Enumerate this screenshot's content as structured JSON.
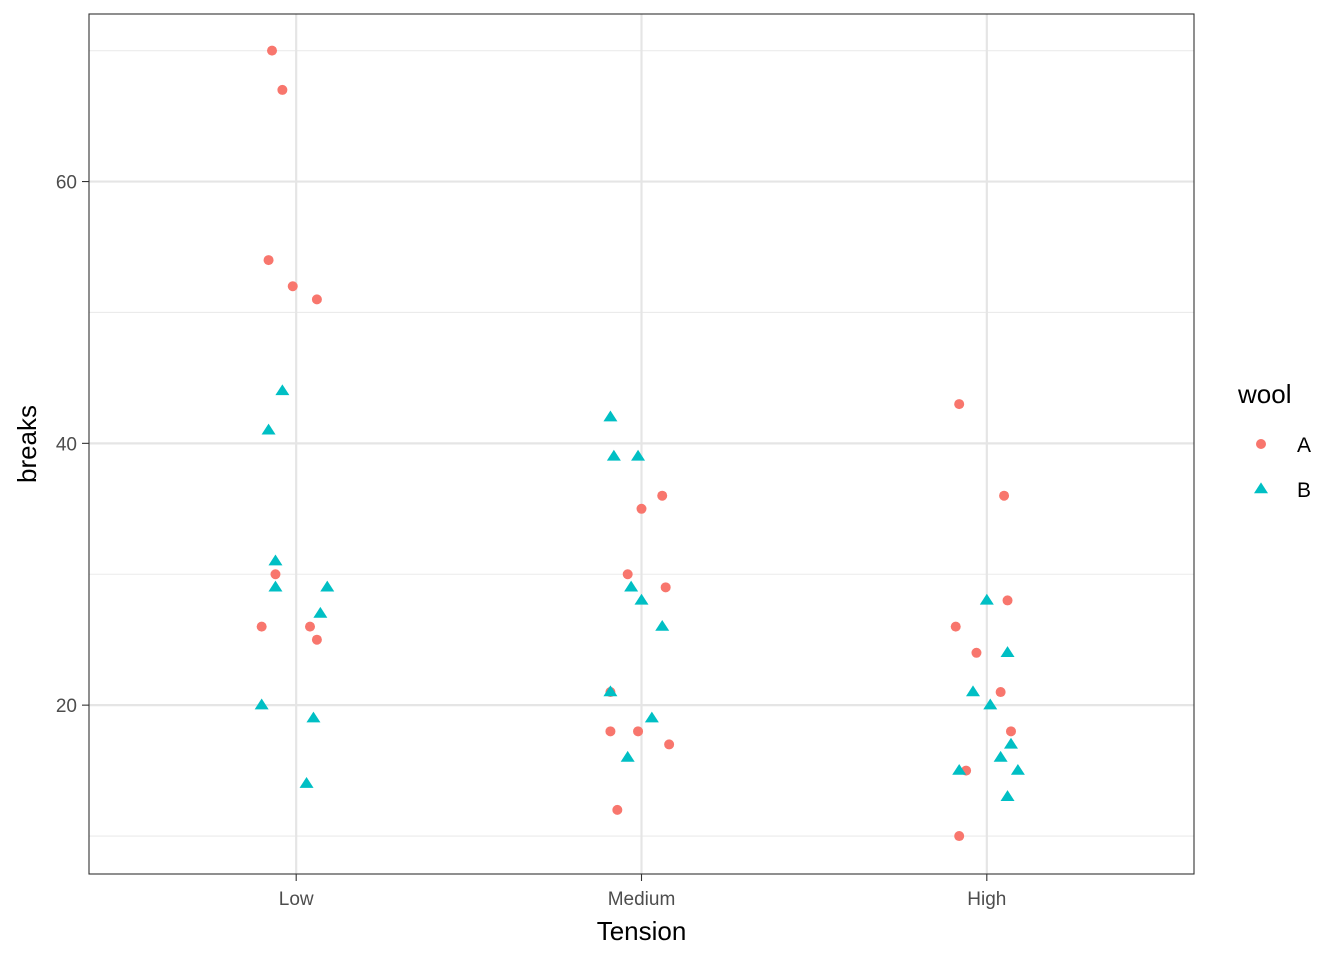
{
  "chart_data": {
    "type": "scatter",
    "title": "",
    "xlabel": "Tension",
    "ylabel": "breaks",
    "categories": [
      "Low",
      "Medium",
      "High"
    ],
    "ylim": [
      7.1,
      72.8
    ],
    "yticks": [
      20,
      40,
      60
    ],
    "ytick_labels": [
      "20",
      "40",
      "60"
    ],
    "grid": true,
    "legend": {
      "title": "wool",
      "position": "right",
      "entries": [
        {
          "name": "A",
          "shape": "circle",
          "color": "#F8766D"
        },
        {
          "name": "B",
          "shape": "triangle",
          "color": "#00BFC4"
        }
      ]
    },
    "series": [
      {
        "name": "A",
        "shape": "circle",
        "color": "#F8766D",
        "points": [
          {
            "x": 0.93,
            "y": 70
          },
          {
            "x": 0.96,
            "y": 67
          },
          {
            "x": 0.92,
            "y": 54
          },
          {
            "x": 0.99,
            "y": 52
          },
          {
            "x": 1.06,
            "y": 51
          },
          {
            "x": 0.94,
            "y": 30
          },
          {
            "x": 0.9,
            "y": 26
          },
          {
            "x": 1.04,
            "y": 26
          },
          {
            "x": 1.06,
            "y": 25
          },
          {
            "x": 2.06,
            "y": 36
          },
          {
            "x": 2.0,
            "y": 35
          },
          {
            "x": 1.96,
            "y": 30
          },
          {
            "x": 2.07,
            "y": 29
          },
          {
            "x": 1.91,
            "y": 21
          },
          {
            "x": 1.91,
            "y": 18
          },
          {
            "x": 1.99,
            "y": 18
          },
          {
            "x": 2.08,
            "y": 17
          },
          {
            "x": 1.93,
            "y": 12
          },
          {
            "x": 2.92,
            "y": 43
          },
          {
            "x": 3.05,
            "y": 36
          },
          {
            "x": 3.06,
            "y": 28
          },
          {
            "x": 2.91,
            "y": 26
          },
          {
            "x": 2.97,
            "y": 24
          },
          {
            "x": 3.04,
            "y": 21
          },
          {
            "x": 3.07,
            "y": 18
          },
          {
            "x": 2.94,
            "y": 15
          },
          {
            "x": 2.92,
            "y": 10
          }
        ]
      },
      {
        "name": "B",
        "shape": "triangle",
        "color": "#00BFC4",
        "points": [
          {
            "x": 0.96,
            "y": 44
          },
          {
            "x": 0.92,
            "y": 41
          },
          {
            "x": 0.94,
            "y": 31
          },
          {
            "x": 0.94,
            "y": 29
          },
          {
            "x": 1.09,
            "y": 29
          },
          {
            "x": 1.07,
            "y": 27
          },
          {
            "x": 0.9,
            "y": 20
          },
          {
            "x": 1.05,
            "y": 19
          },
          {
            "x": 1.03,
            "y": 14
          },
          {
            "x": 1.91,
            "y": 42
          },
          {
            "x": 1.92,
            "y": 39
          },
          {
            "x": 1.99,
            "y": 39
          },
          {
            "x": 1.97,
            "y": 29
          },
          {
            "x": 2.0,
            "y": 28
          },
          {
            "x": 2.06,
            "y": 26
          },
          {
            "x": 1.91,
            "y": 21
          },
          {
            "x": 2.03,
            "y": 19
          },
          {
            "x": 1.96,
            "y": 16
          },
          {
            "x": 3.0,
            "y": 28
          },
          {
            "x": 3.06,
            "y": 24
          },
          {
            "x": 2.96,
            "y": 21
          },
          {
            "x": 3.01,
            "y": 20
          },
          {
            "x": 3.07,
            "y": 17
          },
          {
            "x": 3.04,
            "y": 16
          },
          {
            "x": 2.92,
            "y": 15
          },
          {
            "x": 3.09,
            "y": 15
          },
          {
            "x": 3.06,
            "y": 13
          }
        ]
      }
    ]
  }
}
